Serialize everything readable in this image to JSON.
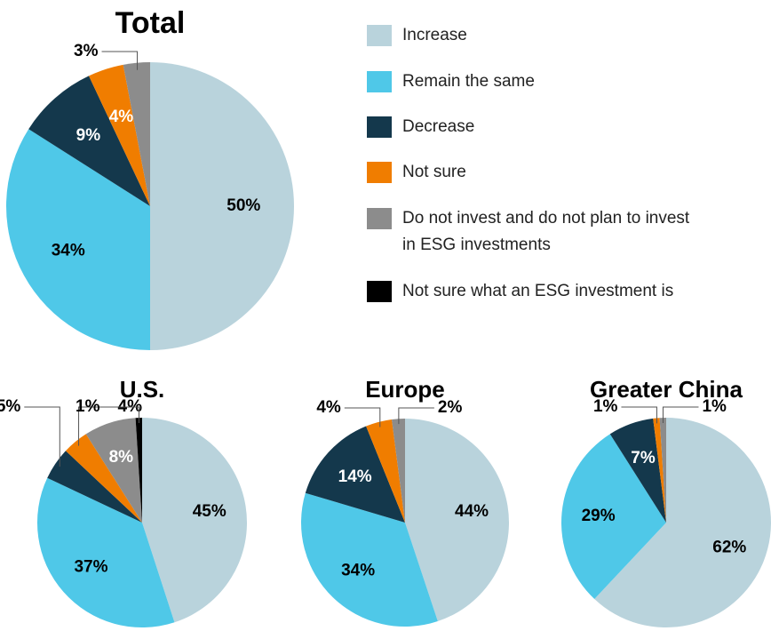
{
  "legend": {
    "categories": [
      "Increase",
      "Remain the same",
      "Decrease",
      "Not sure",
      "Do not invest and do not plan to invest in ESG investments",
      "Not sure what an ESG investment is"
    ],
    "category_lines": [
      [
        "Increase"
      ],
      [
        "Remain the same"
      ],
      [
        "Decrease"
      ],
      [
        "Not sure"
      ],
      [
        "Do not invest and do not plan to invest",
        "in ESG investments"
      ],
      [
        "Not sure what an ESG investment is"
      ]
    ],
    "colors": [
      "#b9d3dc",
      "#4fc8e8",
      "#14384c",
      "#f07d00",
      "#8c8c8c",
      "#000000"
    ]
  },
  "chart_data": [
    {
      "type": "pie",
      "title": "Total",
      "values": [
        50,
        34,
        9,
        4,
        3
      ],
      "value_labels": [
        "50%",
        "34%",
        "9%",
        "4%",
        "3%"
      ]
    },
    {
      "type": "pie",
      "title": "U.S.",
      "values": [
        45,
        37,
        5,
        4,
        8,
        1
      ],
      "value_labels": [
        "45%",
        "37%",
        "5%",
        "4%",
        "8%",
        "1%"
      ]
    },
    {
      "type": "pie",
      "title": "Europe",
      "values": [
        44,
        34,
        14,
        4,
        2
      ],
      "value_labels": [
        "44%",
        "34%",
        "14%",
        "4%",
        "2%"
      ]
    },
    {
      "type": "pie",
      "title": "Greater China",
      "values": [
        62,
        29,
        7,
        1,
        1
      ],
      "value_labels": [
        "62%",
        "29%",
        "7%",
        "1%",
        "1%"
      ]
    }
  ]
}
